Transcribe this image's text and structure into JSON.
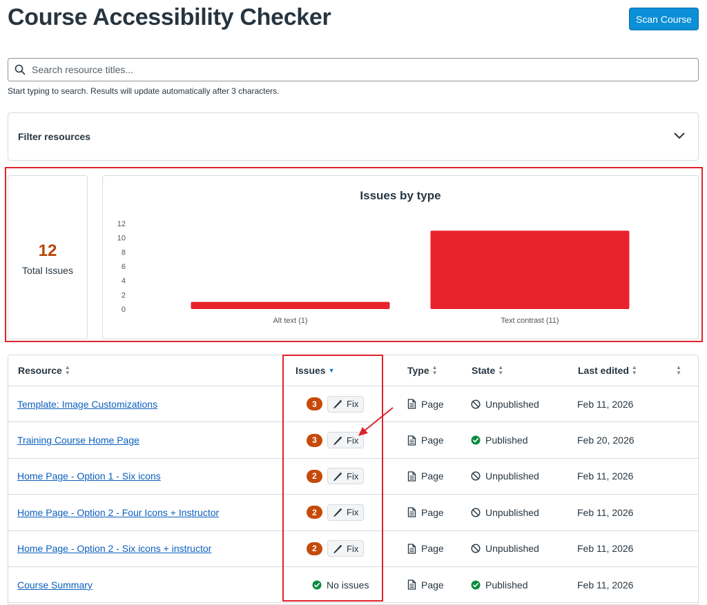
{
  "header": {
    "title": "Course Accessibility Checker",
    "scan_button": "Scan Course"
  },
  "search": {
    "placeholder": "Search resource titles...",
    "value": "",
    "hint": "Start typing to search. Results will update automatically after 3 characters."
  },
  "filter": {
    "label": "Filter resources"
  },
  "summary": {
    "total_issues": "12",
    "total_label": "Total Issues"
  },
  "chart_data": {
    "type": "bar",
    "title": "Issues by type",
    "categories": [
      "Alt text (1)",
      "Text contrast (11)"
    ],
    "values": [
      1,
      11
    ],
    "ylim": [
      0,
      12
    ],
    "yticks": [
      0,
      2,
      4,
      6,
      8,
      10,
      12
    ],
    "xlabel": "",
    "ylabel": "",
    "bar_color": "#e8232b",
    "grid": false
  },
  "table": {
    "columns": {
      "resource": "Resource",
      "issues": "Issues",
      "type": "Type",
      "state": "State",
      "last_edited": "Last edited"
    },
    "fix_label": "Fix",
    "no_issues_label": "No issues",
    "rows": [
      {
        "resource": "Template: Image Customizations",
        "issues": "3",
        "type": "Page",
        "state": "Unpublished",
        "published": false,
        "last_edited": "Feb 11, 2026"
      },
      {
        "resource": "Training Course Home Page",
        "issues": "3",
        "type": "Page",
        "state": "Published",
        "published": true,
        "last_edited": "Feb 20, 2026"
      },
      {
        "resource": "Home Page - Option 1 - Six icons",
        "issues": "2",
        "type": "Page",
        "state": "Unpublished",
        "published": false,
        "last_edited": "Feb 11, 2026"
      },
      {
        "resource": "Home Page - Option 2 - Four Icons + Instructor",
        "issues": "2",
        "type": "Page",
        "state": "Unpublished",
        "published": false,
        "last_edited": "Feb 11, 2026"
      },
      {
        "resource": "Home Page - Option 2 - Six icons + instructor",
        "issues": "2",
        "type": "Page",
        "state": "Unpublished",
        "published": false,
        "last_edited": "Feb 11, 2026"
      },
      {
        "resource": "Course Summary",
        "issues": "",
        "type": "Page",
        "state": "Published",
        "published": true,
        "last_edited": "Feb 11, 2026"
      }
    ]
  },
  "colors": {
    "accent": "#0b8fd6",
    "issue_badge": "#c64a0a",
    "published": "#0b8a3e",
    "highlight": "#e0212b"
  }
}
